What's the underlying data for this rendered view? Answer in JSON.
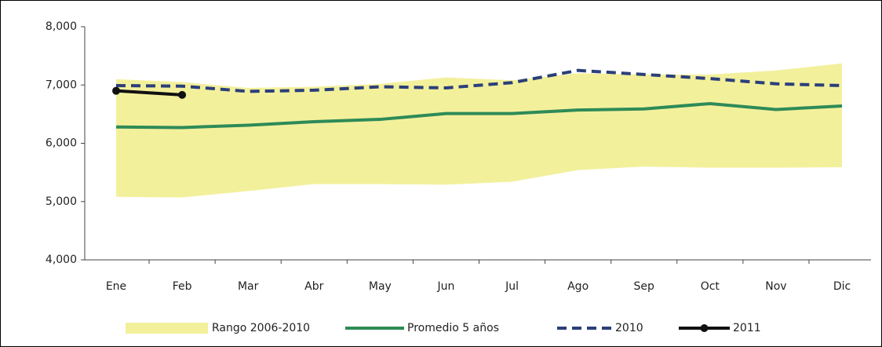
{
  "chart_data": {
    "type": "line",
    "categories": [
      "Ene",
      "Feb",
      "Mar",
      "Abr",
      "May",
      "Jun",
      "Jul",
      "Ago",
      "Sep",
      "Oct",
      "Nov",
      "Dic"
    ],
    "ylim": [
      4000,
      8000
    ],
    "yticks": [
      {
        "value": 4000,
        "label": "4,000"
      },
      {
        "value": 5000,
        "label": "5,000"
      },
      {
        "value": 6000,
        "label": "6,000"
      },
      {
        "value": 7000,
        "label": "7,000"
      },
      {
        "value": 8000,
        "label": "8,000"
      }
    ],
    "band": {
      "name": "Rango 2006-2010",
      "color": "#f3f09c",
      "upper": [
        7100,
        7050,
        6950,
        6970,
        7020,
        7130,
        7080,
        7200,
        7180,
        7180,
        7250,
        7370
      ],
      "lower": [
        5080,
        5070,
        5180,
        5300,
        5300,
        5290,
        5340,
        5540,
        5600,
        5580,
        5580,
        5590
      ]
    },
    "series": [
      {
        "name": "Promedio 5 años",
        "color": "#2e8b57",
        "style": "solid",
        "values": [
          6280,
          6270,
          6310,
          6370,
          6410,
          6510,
          6510,
          6570,
          6590,
          6680,
          6580,
          6640
        ]
      },
      {
        "name": "2010",
        "color": "#2b3f7a",
        "style": "dashed",
        "values": [
          6990,
          6980,
          6890,
          6910,
          6970,
          6950,
          7040,
          7250,
          7180,
          7110,
          7020,
          6990
        ]
      },
      {
        "name": "2011",
        "color": "#111111",
        "style": "marker",
        "values": [
          6900,
          6830,
          null,
          null,
          null,
          null,
          null,
          null,
          null,
          null,
          null,
          null
        ]
      }
    ]
  }
}
